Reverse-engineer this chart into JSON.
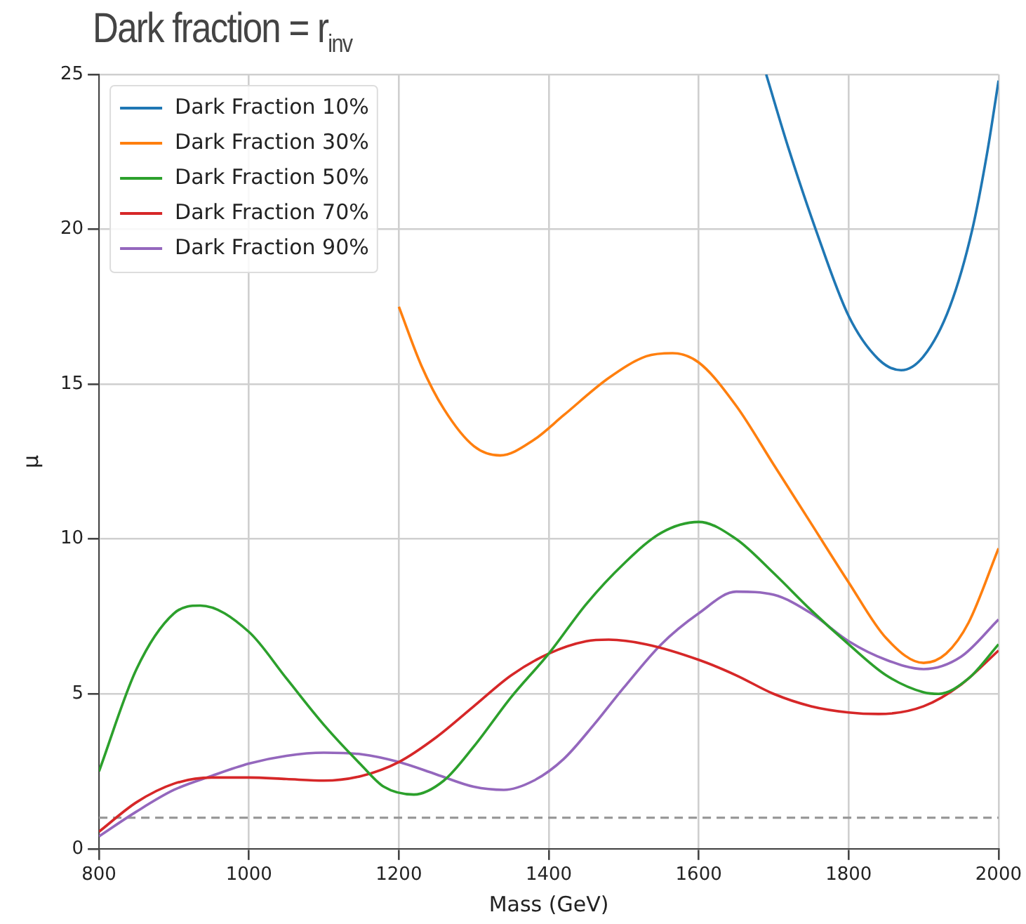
{
  "chart_data": {
    "type": "line",
    "title": "Dark fraction = r$_{inv}$",
    "xlabel": "Mass (GeV)",
    "ylabel": "μ",
    "xlim": [
      800,
      2000
    ],
    "ylim": [
      0,
      25
    ],
    "xticks": [
      800,
      1000,
      1200,
      1400,
      1600,
      1800,
      2000
    ],
    "yticks": [
      0,
      5,
      10,
      15,
      20,
      25
    ],
    "grid": true,
    "legend": "top left",
    "marker": "none",
    "line_style": "solid",
    "ref_lines": [
      {
        "axis": "y",
        "value": 1,
        "color": "#999999",
        "line_style": "dashed"
      }
    ],
    "series": [
      {
        "name": "Dark Fraction 10%",
        "color": "#1f77b4",
        "x": [
          1690,
          1720,
          1756,
          1800,
          1840,
          1870,
          1900,
          1935,
          1965,
          1985,
          2000
        ],
        "values": [
          25.0,
          22.6,
          20.0,
          17.2,
          15.8,
          15.45,
          15.9,
          17.5,
          20.0,
          22.5,
          24.8
        ]
      },
      {
        "name": "Dark Fraction 30%",
        "color": "#ff7f0e",
        "x": [
          1200,
          1230,
          1260,
          1300,
          1335,
          1380,
          1420,
          1480,
          1530,
          1565,
          1600,
          1650,
          1700,
          1750,
          1800,
          1850,
          1900,
          1930,
          1960,
          2000
        ],
        "values": [
          17.5,
          15.6,
          14.2,
          13.0,
          12.7,
          13.2,
          14.0,
          15.2,
          15.9,
          16.0,
          15.7,
          14.3,
          12.4,
          10.5,
          8.6,
          6.8,
          6.0,
          6.3,
          7.3,
          9.7
        ]
      },
      {
        "name": "Dark Fraction 50%",
        "color": "#2ca02c",
        "x": [
          800,
          850,
          900,
          935,
          1000,
          1050,
          1100,
          1150,
          1180,
          1220,
          1260,
          1300,
          1350,
          1400,
          1450,
          1500,
          1550,
          1600,
          1650,
          1700,
          1750,
          1800,
          1850,
          1900,
          1920,
          1960,
          2000
        ],
        "values": [
          2.5,
          5.8,
          7.6,
          7.85,
          7.0,
          5.5,
          4.0,
          2.7,
          2.0,
          1.75,
          2.2,
          3.3,
          4.9,
          6.3,
          7.9,
          9.2,
          10.2,
          10.55,
          10.0,
          8.9,
          7.7,
          6.6,
          5.6,
          5.05,
          5.0,
          5.5,
          6.6
        ]
      },
      {
        "name": "Dark Fraction 70%",
        "color": "#d62728",
        "x": [
          800,
          850,
          900,
          950,
          1000,
          1050,
          1100,
          1150,
          1200,
          1250,
          1300,
          1350,
          1400,
          1450,
          1480,
          1530,
          1600,
          1650,
          1700,
          1750,
          1800,
          1840,
          1900,
          1950,
          2000
        ],
        "values": [
          0.55,
          1.5,
          2.1,
          2.3,
          2.3,
          2.25,
          2.2,
          2.35,
          2.8,
          3.6,
          4.6,
          5.6,
          6.3,
          6.7,
          6.75,
          6.6,
          6.1,
          5.6,
          5.0,
          4.6,
          4.4,
          4.35,
          4.6,
          5.3,
          6.4
        ]
      },
      {
        "name": "Dark Fraction 90%",
        "color": "#9467bd",
        "x": [
          800,
          850,
          900,
          950,
          1000,
          1050,
          1100,
          1150,
          1200,
          1250,
          1300,
          1340,
          1380,
          1420,
          1460,
          1500,
          1550,
          1600,
          1650,
          1700,
          1750,
          1800,
          1850,
          1900,
          1950,
          2000
        ],
        "values": [
          0.4,
          1.2,
          1.9,
          2.35,
          2.75,
          3.0,
          3.1,
          3.05,
          2.8,
          2.4,
          2.0,
          1.9,
          2.2,
          2.9,
          4.0,
          5.2,
          6.6,
          7.6,
          8.3,
          8.2,
          7.6,
          6.7,
          6.1,
          5.8,
          6.2,
          7.4
        ]
      }
    ]
  }
}
